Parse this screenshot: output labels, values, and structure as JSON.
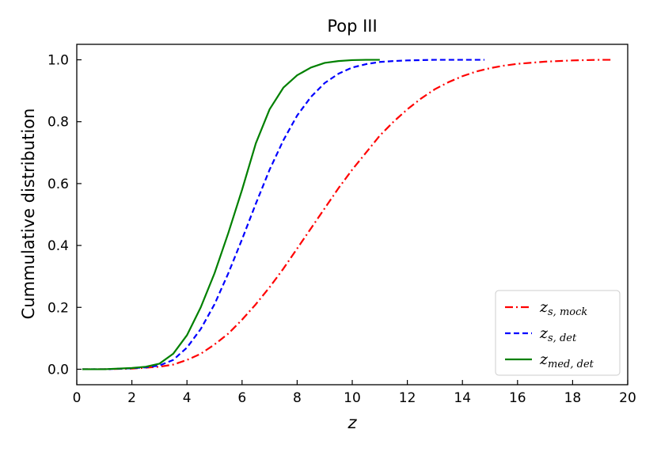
{
  "chart_data": {
    "type": "line",
    "title": "Pop III",
    "xlabel": "z",
    "ylabel": "Cummulative distribution",
    "xlim": [
      0,
      20
    ],
    "ylim": [
      -0.05,
      1.05
    ],
    "xticks": [
      0,
      2,
      4,
      6,
      8,
      10,
      12,
      14,
      16,
      18,
      20
    ],
    "yticks": [
      0.0,
      0.2,
      0.4,
      0.6,
      0.8,
      1.0
    ],
    "xtick_labels": [
      "0",
      "2",
      "4",
      "6",
      "8",
      "10",
      "12",
      "14",
      "16",
      "18",
      "20"
    ],
    "ytick_labels": [
      "0.0",
      "0.2",
      "0.4",
      "0.6",
      "0.8",
      "1.0"
    ],
    "grid": false,
    "legend": "lower-right",
    "series": [
      {
        "name": "z_{s, mock}",
        "label_main": "z",
        "label_sub": "s, mock",
        "color": "#ff0000",
        "style": "dashdot",
        "x": [
          0.2,
          1.0,
          2.0,
          3.0,
          3.5,
          4.0,
          4.5,
          5.0,
          5.5,
          6.0,
          6.5,
          7.0,
          7.5,
          8.0,
          8.5,
          9.0,
          9.5,
          10.0,
          10.5,
          11.0,
          11.5,
          12.0,
          12.5,
          13.0,
          13.5,
          14.0,
          14.5,
          15.0,
          15.5,
          16.0,
          17.0,
          18.0,
          19.0,
          19.4
        ],
        "y": [
          0.0,
          0.0,
          0.002,
          0.008,
          0.015,
          0.03,
          0.05,
          0.08,
          0.115,
          0.16,
          0.21,
          0.265,
          0.325,
          0.39,
          0.455,
          0.52,
          0.585,
          0.645,
          0.7,
          0.755,
          0.8,
          0.84,
          0.875,
          0.905,
          0.928,
          0.947,
          0.962,
          0.973,
          0.981,
          0.987,
          0.994,
          0.998,
          1.0,
          1.0
        ]
      },
      {
        "name": "z_{s, det}",
        "label_main": "z",
        "label_sub": "s, det",
        "color": "#0000ff",
        "style": "dashed",
        "x": [
          0.2,
          1.0,
          2.0,
          2.5,
          3.0,
          3.5,
          4.0,
          4.5,
          5.0,
          5.5,
          6.0,
          6.5,
          7.0,
          7.5,
          8.0,
          8.5,
          9.0,
          9.5,
          10.0,
          10.5,
          11.0,
          11.5,
          12.0,
          13.0,
          14.0,
          14.8
        ],
        "y": [
          0.0,
          0.0,
          0.003,
          0.006,
          0.012,
          0.03,
          0.07,
          0.13,
          0.21,
          0.31,
          0.42,
          0.535,
          0.645,
          0.74,
          0.82,
          0.88,
          0.925,
          0.955,
          0.975,
          0.986,
          0.993,
          0.996,
          0.998,
          1.0,
          1.0,
          1.0
        ]
      },
      {
        "name": "z_{med, det}",
        "label_main": "z",
        "label_sub": "med, det",
        "color": "#008000",
        "style": "solid",
        "x": [
          0.2,
          1.0,
          2.0,
          2.5,
          3.0,
          3.5,
          4.0,
          4.5,
          5.0,
          5.5,
          6.0,
          6.5,
          7.0,
          7.5,
          8.0,
          8.5,
          9.0,
          9.5,
          10.0,
          10.5,
          11.0
        ],
        "y": [
          0.0,
          0.0,
          0.004,
          0.008,
          0.018,
          0.05,
          0.11,
          0.2,
          0.31,
          0.44,
          0.58,
          0.73,
          0.84,
          0.91,
          0.95,
          0.975,
          0.99,
          0.996,
          0.999,
          1.0,
          1.0
        ]
      }
    ]
  }
}
